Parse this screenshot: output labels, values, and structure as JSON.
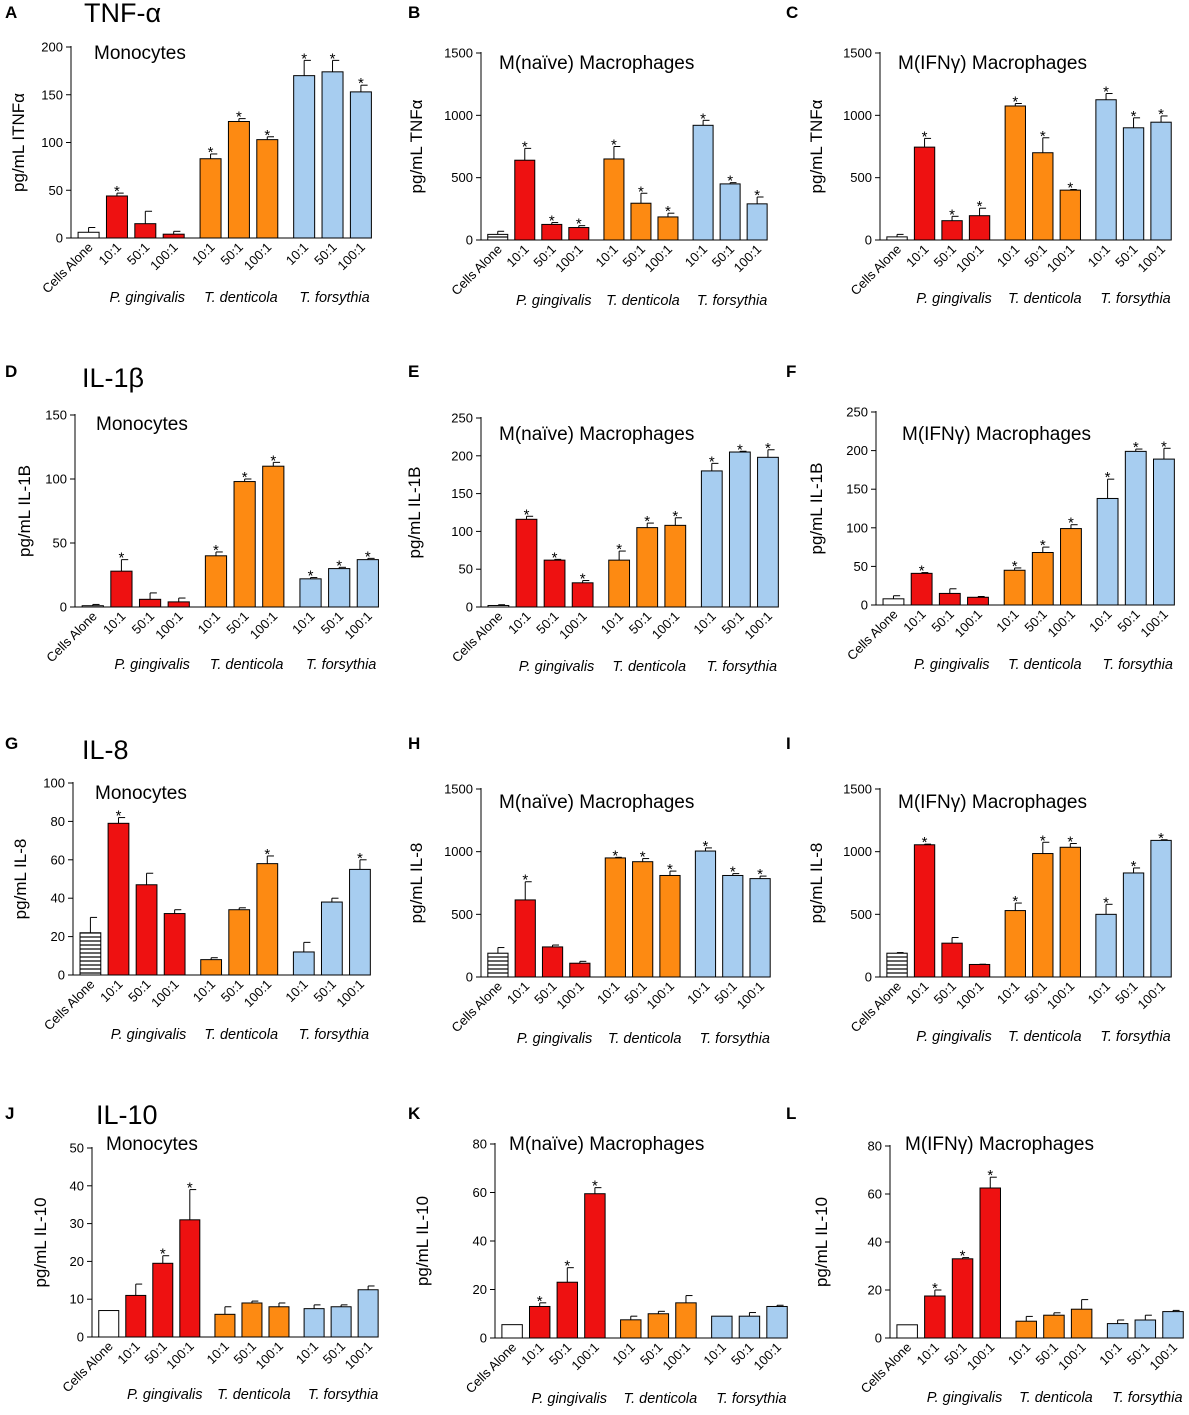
{
  "colors": {
    "control": "#ffffff",
    "p_gingivalis": "#ee1111",
    "t_denticola": "#fd8a12",
    "t_forsythia": "#a7cdf0",
    "stroke": "#000000"
  },
  "row_titles": [
    "TNF-α",
    "IL-1β",
    "IL-8",
    "IL-10"
  ],
  "chart_data": [
    {
      "panel": "A",
      "type": "bar",
      "title": "Monocytes",
      "ylabel": "pg/mL ITNFα",
      "ylim": [
        0,
        200
      ],
      "yticks": [
        0,
        50,
        100,
        150,
        200
      ],
      "row_title": "TNF-α",
      "control_pattern": "plain",
      "categories": [
        "Cells Alone",
        "10:1",
        "50:1",
        "100:1",
        "10:1",
        "50:1",
        "100:1",
        "10:1",
        "50:1",
        "100:1"
      ],
      "groups": [
        "P. gingivalis",
        "T. denticola",
        "T. forsythia"
      ],
      "values": [
        6,
        44,
        15,
        4,
        83,
        122,
        103,
        170,
        174,
        153
      ],
      "errors": [
        5,
        3,
        13,
        3,
        5,
        3,
        3,
        16,
        12,
        7
      ],
      "significant": [
        false,
        true,
        false,
        false,
        true,
        true,
        true,
        true,
        true,
        true
      ]
    },
    {
      "panel": "B",
      "type": "bar",
      "title": "M(naïve) Macrophages",
      "ylabel": "pg/mL TNFα",
      "ylim": [
        0,
        1500
      ],
      "yticks": [
        0,
        500,
        1000,
        1500
      ],
      "control_pattern": "horizontal-lines",
      "categories": [
        "Cells Alone",
        "10:1",
        "50:1",
        "100:1",
        "10:1",
        "50:1",
        "100:1",
        "10:1",
        "50:1",
        "100:1"
      ],
      "groups": [
        "P. gingivalis",
        "T. denticola",
        "T. forsythia"
      ],
      "values": [
        45,
        640,
        125,
        100,
        650,
        295,
        185,
        920,
        450,
        290
      ],
      "errors": [
        25,
        95,
        15,
        15,
        100,
        80,
        30,
        40,
        10,
        55
      ],
      "significant": [
        false,
        true,
        true,
        true,
        true,
        true,
        true,
        true,
        true,
        true
      ]
    },
    {
      "panel": "C",
      "type": "bar",
      "title": "M(IFNγ) Macrophages",
      "ylabel": "pg/mL TNFα",
      "ylim": [
        0,
        1500
      ],
      "yticks": [
        0,
        500,
        1000,
        1500
      ],
      "control_pattern": "plain",
      "categories": [
        "Cells Alone",
        "10:1",
        "50:1",
        "100:1",
        "10:1",
        "50:1",
        "100:1",
        "10:1",
        "50:1",
        "100:1"
      ],
      "groups": [
        "P. gingivalis",
        "T. denticola",
        "T. forsythia"
      ],
      "values": [
        25,
        745,
        155,
        195,
        1075,
        700,
        400,
        1125,
        900,
        945
      ],
      "errors": [
        20,
        70,
        35,
        60,
        20,
        120,
        5,
        50,
        80,
        50
      ],
      "significant": [
        false,
        true,
        true,
        true,
        true,
        true,
        true,
        true,
        true,
        true
      ]
    },
    {
      "panel": "D",
      "type": "bar",
      "title": "Monocytes",
      "ylabel": "pg/mL IL-1B",
      "ylim": [
        0,
        150
      ],
      "yticks": [
        0,
        50,
        100,
        150
      ],
      "row_title": "IL-1β",
      "control_pattern": "plain",
      "categories": [
        "Cells Alone",
        "10:1",
        "50:1",
        "100:1",
        "10:1",
        "50:1",
        "100:1",
        "10:1",
        "50:1",
        "100:1"
      ],
      "groups": [
        "P. gingivalis",
        "T. denticola",
        "T. forsythia"
      ],
      "values": [
        1,
        28,
        6,
        4,
        40,
        98,
        110,
        22,
        30,
        37
      ],
      "errors": [
        1,
        9,
        5,
        3,
        3,
        2,
        3,
        1,
        1,
        1
      ],
      "significant": [
        false,
        true,
        false,
        false,
        true,
        true,
        true,
        true,
        true,
        true
      ]
    },
    {
      "panel": "E",
      "type": "bar",
      "title": "M(naïve) Macrophages",
      "ylabel": "pg/mL IL-1B",
      "ylim": [
        0,
        250
      ],
      "yticks": [
        0,
        50,
        100,
        150,
        200,
        250
      ],
      "control_pattern": "plain",
      "categories": [
        "Cells Alone",
        "10:1",
        "50:1",
        "100:1",
        "10:1",
        "50:1",
        "100:1",
        "10:1",
        "50:1",
        "100:1"
      ],
      "groups": [
        "P. gingivalis",
        "T. denticola",
        "T. forsythia"
      ],
      "values": [
        2,
        116,
        62,
        32,
        62,
        105,
        108,
        180,
        205,
        198
      ],
      "errors": [
        1,
        4,
        1,
        3,
        12,
        6,
        10,
        10,
        1,
        10
      ],
      "significant": [
        false,
        true,
        true,
        true,
        true,
        true,
        true,
        true,
        true,
        true
      ]
    },
    {
      "panel": "F",
      "type": "bar",
      "title": "M(IFNγ) Macrophages",
      "ylabel": "pg/mL IL-1B",
      "ylim": [
        0,
        250
      ],
      "yticks": [
        0,
        50,
        100,
        150,
        200,
        250
      ],
      "control_pattern": "plain",
      "categories": [
        "Cells Alone",
        "10:1",
        "50:1",
        "100:1",
        "10:1",
        "50:1",
        "100:1",
        "10:1",
        "50:1",
        "100:1"
      ],
      "groups": [
        "P. gingivalis",
        "T. denticola",
        "T. forsythia"
      ],
      "values": [
        8,
        41,
        15,
        10,
        45,
        68,
        99,
        138,
        199,
        189
      ],
      "errors": [
        4,
        1,
        6,
        1,
        3,
        7,
        5,
        25,
        3,
        14
      ],
      "significant": [
        false,
        true,
        false,
        false,
        true,
        true,
        true,
        true,
        true,
        true
      ]
    },
    {
      "panel": "G",
      "type": "bar",
      "title": "Monocytes",
      "ylabel": "pg/mL IL-8",
      "ylim": [
        0,
        100
      ],
      "yticks": [
        0,
        20,
        40,
        60,
        80,
        100
      ],
      "row_title": "IL-8",
      "control_pattern": "horizontal-lines",
      "categories": [
        "Cells Alone",
        "10:1",
        "50:1",
        "100:1",
        "10:1",
        "50:1",
        "100:1",
        "10:1",
        "50:1",
        "100:1"
      ],
      "groups": [
        "P. gingivalis",
        "T. denticola",
        "T. forsythia"
      ],
      "values": [
        22,
        79,
        47,
        32,
        8,
        34,
        58,
        12,
        38,
        55
      ],
      "errors": [
        8,
        3,
        6,
        2,
        1,
        1,
        4,
        5,
        2,
        5
      ],
      "significant": [
        false,
        true,
        false,
        false,
        false,
        false,
        true,
        false,
        false,
        true
      ]
    },
    {
      "panel": "H",
      "type": "bar",
      "title": "M(naïve)  Macrophages",
      "ylabel": "pg/mL IL-8",
      "ylim": [
        0,
        1500
      ],
      "yticks": [
        0,
        500,
        1000,
        1500
      ],
      "control_pattern": "horizontal-lines",
      "categories": [
        "Cells Alone",
        "10:1",
        "50:1",
        "100:1",
        "10:1",
        "50:1",
        "100:1",
        "10:1",
        "50:1",
        "100:1"
      ],
      "groups": [
        "P. gingivalis",
        "T. denticola",
        "T. forsythia"
      ],
      "values": [
        190,
        615,
        240,
        110,
        950,
        920,
        810,
        1005,
        810,
        785
      ],
      "errors": [
        45,
        145,
        15,
        15,
        5,
        25,
        35,
        25,
        15,
        20
      ],
      "significant": [
        false,
        true,
        false,
        false,
        true,
        true,
        true,
        true,
        true,
        true
      ]
    },
    {
      "panel": "I",
      "type": "bar",
      "title": "M(IFNγ)  Macrophages",
      "ylabel": "pg/mL IL-8",
      "ylim": [
        0,
        1500
      ],
      "yticks": [
        0,
        500,
        1000,
        1500
      ],
      "control_pattern": "horizontal-lines",
      "categories": [
        "Cells Alone",
        "10:1",
        "50:1",
        "100:1",
        "10:1",
        "50:1",
        "100:1",
        "10:1",
        "50:1",
        "100:1"
      ],
      "groups": [
        "P. gingivalis",
        "T. denticola",
        "T. forsythia"
      ],
      "values": [
        190,
        1055,
        270,
        100,
        530,
        985,
        1035,
        500,
        830,
        1090
      ],
      "errors": [
        5,
        5,
        45,
        2,
        60,
        90,
        30,
        80,
        40,
        5
      ],
      "significant": [
        false,
        true,
        false,
        false,
        true,
        true,
        true,
        true,
        true,
        true
      ]
    },
    {
      "panel": "J",
      "type": "bar",
      "title": "Monocytes",
      "ylabel": "pg/mL IL-10",
      "ylim": [
        0,
        50
      ],
      "yticks": [
        0,
        10,
        20,
        30,
        40,
        50
      ],
      "row_title": "IL-10",
      "control_pattern": "plain",
      "categories": [
        "Cells Alone",
        "10:1",
        "50:1",
        "100:1",
        "10:1",
        "50:1",
        "100:1",
        "10:1",
        "50:1",
        "100:1"
      ],
      "groups": [
        "P. gingivalis",
        "T. denticola",
        "T. forsythia"
      ],
      "values": [
        7,
        11,
        19.5,
        31,
        6,
        9,
        8,
        7.5,
        8,
        12.5
      ],
      "errors": [
        0,
        3,
        2,
        8,
        2,
        0.5,
        1,
        1,
        0.5,
        1
      ],
      "significant": [
        false,
        false,
        true,
        true,
        false,
        false,
        false,
        false,
        false,
        false
      ]
    },
    {
      "panel": "K",
      "type": "bar",
      "title": "M(naïve)  Macrophages",
      "ylabel": "pg/mL IL-10",
      "ylim": [
        0,
        80
      ],
      "yticks": [
        0,
        20,
        40,
        60,
        80
      ],
      "control_pattern": "plain",
      "categories": [
        "Cells Alone",
        "10:1",
        "50:1",
        "100:1",
        "10:1",
        "50:1",
        "100:1",
        "10:1",
        "50:1",
        "100:1"
      ],
      "groups": [
        "P. gingivalis",
        "T. denticola",
        "T. forsythia"
      ],
      "values": [
        5.5,
        13,
        23,
        59.5,
        7.5,
        10,
        14.5,
        9,
        9,
        13
      ],
      "errors": [
        0,
        1.5,
        6,
        2.5,
        1.5,
        1,
        3,
        0,
        1.5,
        0.5
      ],
      "significant": [
        false,
        true,
        true,
        true,
        false,
        false,
        false,
        false,
        false,
        false
      ]
    },
    {
      "panel": "L",
      "type": "bar",
      "title": "M(IFNγ) Macrophages",
      "ylabel": "pg/mL IL-10",
      "ylim": [
        0,
        80
      ],
      "yticks": [
        0,
        20,
        40,
        60,
        80
      ],
      "control_pattern": "plain",
      "categories": [
        "Cells Alone",
        "10:1",
        "50:1",
        "100:1",
        "10:1",
        "50:1",
        "100:1",
        "10:1",
        "50:1",
        "100:1"
      ],
      "groups": [
        "P. gingivalis",
        "T. denticola",
        "T. forsythia"
      ],
      "values": [
        5.5,
        17.5,
        33,
        62.5,
        7,
        9.5,
        12,
        6,
        7.5,
        11
      ],
      "errors": [
        0,
        2.5,
        0.5,
        4.5,
        2,
        1,
        4,
        1.5,
        2,
        0.5
      ],
      "significant": [
        false,
        true,
        true,
        true,
        false,
        false,
        false,
        false,
        false,
        false
      ]
    }
  ]
}
